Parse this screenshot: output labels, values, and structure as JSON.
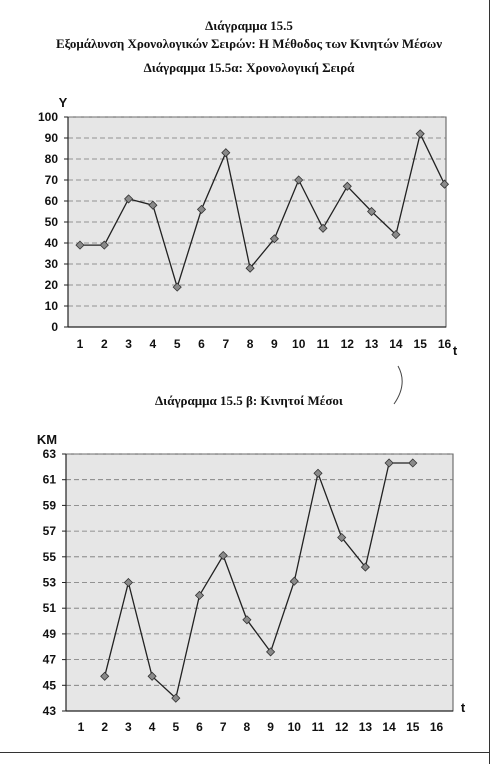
{
  "header": {
    "title": "Διάγραμμα 15.5",
    "subtitle": "Εξομάλυνση Χρονολογικών Σειρών: Η Μέθοδος των Κινητών Μέσων"
  },
  "chart_data": [
    {
      "type": "line",
      "title": "Διάγραμμα 15.5α: Χρονολογική Σειρά",
      "xlabel": "t",
      "ylabel": "Y",
      "x": [
        1,
        2,
        3,
        4,
        5,
        6,
        7,
        8,
        9,
        10,
        11,
        12,
        13,
        14,
        15,
        16
      ],
      "values": [
        39,
        39,
        61,
        58,
        19,
        56,
        83,
        28,
        42,
        70,
        47,
        67,
        55,
        44,
        92,
        68
      ],
      "xlim": [
        1,
        16
      ],
      "ylim": [
        0,
        100
      ],
      "yticks": [
        0,
        10,
        20,
        30,
        40,
        50,
        60,
        70,
        80,
        90,
        100
      ],
      "grid": true,
      "marker": "diamond",
      "plot_background": "#e6e6e6",
      "line_color": "#222222"
    },
    {
      "type": "line",
      "title": "Διάγραμμα 15.5 β: Κινητοί Μέσοι",
      "xlabel": "t",
      "ylabel": "ΚΜ",
      "x": [
        2,
        3,
        4,
        5,
        6,
        7,
        8,
        9,
        10,
        11,
        12,
        13,
        14,
        15
      ],
      "values": [
        45.7,
        53,
        45.7,
        44,
        52,
        55.1,
        50.1,
        47.6,
        53.1,
        61.5,
        56.5,
        54.2,
        62.3,
        62.3
      ],
      "xlim": [
        1,
        16
      ],
      "ylim": [
        43,
        63
      ],
      "yticks": [
        43,
        45,
        47,
        49,
        51,
        53,
        55,
        57,
        59,
        61,
        63
      ],
      "grid": true,
      "marker": "diamond",
      "plot_background": "#e6e6e6",
      "line_color": "#222222"
    }
  ]
}
